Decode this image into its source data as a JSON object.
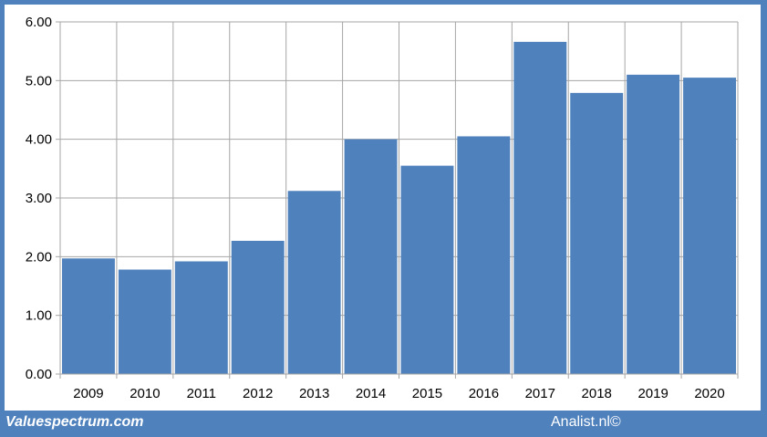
{
  "footer": {
    "left_text": "Valuespectrum.com",
    "right_text": "Analist.nl©"
  },
  "colors": {
    "frame": "#4f81bd",
    "bar": "#4f81bd",
    "grid": "#a6a6a6"
  },
  "chart_data": {
    "type": "bar",
    "title": "",
    "xlabel": "",
    "ylabel": "",
    "categories": [
      "2009",
      "2010",
      "2011",
      "2012",
      "2013",
      "2014",
      "2015",
      "2016",
      "2017",
      "2018",
      "2019",
      "2020"
    ],
    "values": [
      1.97,
      1.78,
      1.92,
      2.27,
      3.12,
      4.0,
      3.55,
      4.05,
      5.66,
      4.79,
      5.1,
      5.05
    ],
    "ylim": [
      0,
      6
    ],
    "yticks": [
      "0.00",
      "1.00",
      "2.00",
      "3.00",
      "4.00",
      "5.00",
      "6.00"
    ],
    "grid": true,
    "legend": "none"
  }
}
